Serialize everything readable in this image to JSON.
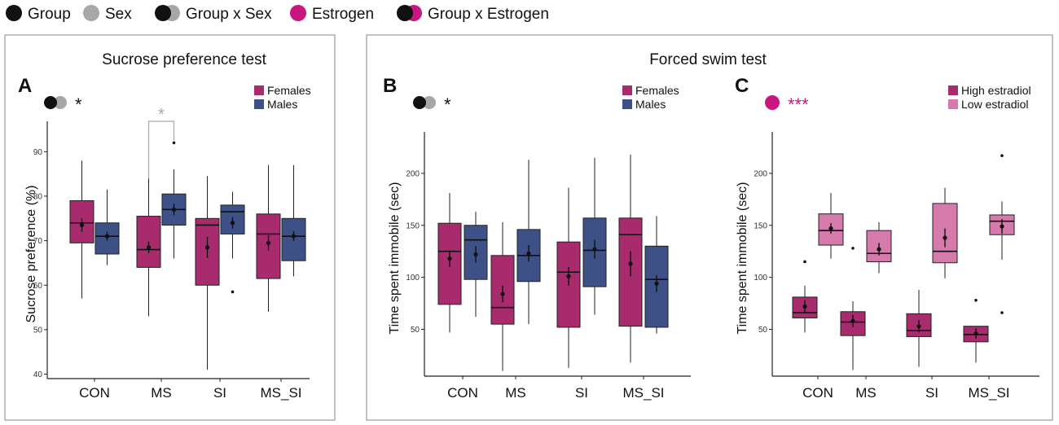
{
  "legend": {
    "items": [
      {
        "label": "Group",
        "icon": "black-dot",
        "colors": [
          "#111111"
        ]
      },
      {
        "label": "Sex",
        "icon": "grey-dot",
        "colors": [
          "#a7a7a7"
        ]
      },
      {
        "label": "Group x Sex",
        "icon": "black-grey-dots",
        "colors": [
          "#111111",
          "#a7a7a7"
        ]
      },
      {
        "label": "Estrogen",
        "icon": "magenta-dot",
        "colors": [
          "#c8177f"
        ]
      },
      {
        "label": "Group x Estrogen",
        "icon": "black-magenta-dots",
        "colors": [
          "#111111",
          "#c8177f"
        ]
      }
    ]
  },
  "colors": {
    "females": "#a72b6d",
    "males": "#3d5186",
    "high_estradiol": "#a72b6d",
    "low_estradiol": "#d57aaa",
    "group_dot": "#111111",
    "sex_dot": "#a7a7a7",
    "estrogen": "#c8177f",
    "panel_border": "#9a9a9a"
  },
  "sections": {
    "sucrose_title": "Sucrose preference test",
    "swim_title": "Forced swim test"
  },
  "chart_data": [
    {
      "type": "boxplot",
      "panel": "A",
      "title": "Sucrose preference test",
      "xlabel": "",
      "ylabel": "Sucrose preference (%)",
      "ylim": [
        39,
        95
      ],
      "yticks": [
        40,
        50,
        60,
        70,
        80,
        90
      ],
      "categories": [
        "CON",
        "MS",
        "SI",
        "MS_SI"
      ],
      "legend": {
        "entries": [
          "Females",
          "Males"
        ],
        "position": "top-right"
      },
      "annotation": {
        "icon": "group-x-sex",
        "label": "*"
      },
      "comparison": {
        "category": "MS",
        "label": "*"
      },
      "series": [
        {
          "name": "Females",
          "color_key": "females",
          "boxes": [
            {
              "min": 57,
              "q1": 69.5,
              "median": 74,
              "q3": 79,
              "max": 88,
              "mean": 73.5,
              "se": 1.5,
              "outliers": []
            },
            {
              "min": 53,
              "q1": 64,
              "median": 68,
              "q3": 75.5,
              "max": 84,
              "mean": 68.5,
              "se": 1.3,
              "outliers": []
            },
            {
              "min": 41,
              "q1": 60,
              "median": 73.5,
              "q3": 75,
              "max": 84.5,
              "mean": 68.5,
              "se": 2.4,
              "outliers": []
            },
            {
              "min": 54,
              "q1": 61.5,
              "median": 71.5,
              "q3": 76,
              "max": 87,
              "mean": 69.5,
              "se": 1.7,
              "outliers": []
            }
          ]
        },
        {
          "name": "Males",
          "color_key": "males",
          "boxes": [
            {
              "min": 64.5,
              "q1": 67,
              "median": 71,
              "q3": 74,
              "max": 81.5,
              "mean": 71,
              "se": 1,
              "outliers": []
            },
            {
              "min": 66,
              "q1": 73.5,
              "median": 77,
              "q3": 80.5,
              "max": 86,
              "mean": 77,
              "se": 1.3,
              "outliers": [
                92
              ]
            },
            {
              "min": 66,
              "q1": 71.5,
              "median": 76.5,
              "q3": 78,
              "max": 81,
              "mean": 74,
              "se": 1.3,
              "outliers": [
                58.5
              ]
            },
            {
              "min": 62,
              "q1": 65.5,
              "median": 71,
              "q3": 75,
              "max": 87,
              "mean": 71,
              "se": 1.1,
              "outliers": []
            }
          ]
        }
      ]
    },
    {
      "type": "boxplot",
      "panel": "B",
      "title": "Forced swim test",
      "xlabel": "",
      "ylabel": "Time spent immobile (sec)",
      "ylim": [
        5,
        232
      ],
      "yticks": [
        50,
        100,
        150,
        200
      ],
      "categories": [
        "CON",
        "MS",
        "SI",
        "MS_SI"
      ],
      "legend": {
        "entries": [
          "Females",
          "Males"
        ],
        "position": "top-right"
      },
      "annotation": {
        "icon": "group-x-sex",
        "label": "*"
      },
      "series": [
        {
          "name": "Females",
          "color_key": "females",
          "boxes": [
            {
              "min": 47,
              "q1": 74,
              "median": 125,
              "q3": 152,
              "max": 181,
              "mean": 118,
              "se": 8,
              "outliers": []
            },
            {
              "min": 10,
              "q1": 55,
              "median": 71,
              "q3": 121,
              "max": 153,
              "mean": 84,
              "se": 8,
              "outliers": []
            },
            {
              "min": 13,
              "q1": 52,
              "median": 105,
              "q3": 134,
              "max": 186,
              "mean": 101,
              "se": 9,
              "outliers": []
            },
            {
              "min": 18,
              "q1": 53,
              "median": 141,
              "q3": 157,
              "max": 218,
              "mean": 113,
              "se": 12,
              "outliers": []
            }
          ]
        },
        {
          "name": "Males",
          "color_key": "males",
          "boxes": [
            {
              "min": 62,
              "q1": 98,
              "median": 136,
              "q3": 150,
              "max": 163,
              "mean": 122,
              "se": 8,
              "outliers": []
            },
            {
              "min": 55,
              "q1": 96,
              "median": 121,
              "q3": 146,
              "max": 213,
              "mean": 123,
              "se": 8,
              "outliers": []
            },
            {
              "min": 64,
              "q1": 91,
              "median": 126,
              "q3": 157,
              "max": 215,
              "mean": 127,
              "se": 9,
              "outliers": []
            },
            {
              "min": 46,
              "q1": 52,
              "median": 98,
              "q3": 130,
              "max": 159,
              "mean": 94,
              "se": 8,
              "outliers": []
            }
          ]
        }
      ]
    },
    {
      "type": "boxplot",
      "panel": "C",
      "title": "Forced swim test",
      "xlabel": "",
      "ylabel": "Time spent immobile (sec)",
      "ylim": [
        5,
        232
      ],
      "yticks": [
        50,
        100,
        150,
        200
      ],
      "categories": [
        "CON",
        "MS",
        "SI",
        "MS_SI"
      ],
      "legend": {
        "entries": [
          "High estradiol",
          "Low estradiol"
        ],
        "position": "top-right"
      },
      "annotation": {
        "icon": "estrogen",
        "label": "***"
      },
      "series": [
        {
          "name": "High estradiol",
          "color_key": "high_estradiol",
          "boxes": [
            {
              "min": 47,
              "q1": 61,
              "median": 66,
              "q3": 81,
              "max": 92,
              "mean": 72,
              "se": 6,
              "outliers": [
                115
              ]
            },
            {
              "min": 11,
              "q1": 44,
              "median": 57,
              "q3": 67,
              "max": 77,
              "mean": 58,
              "se": 6,
              "outliers": [
                128
              ]
            },
            {
              "min": 14,
              "q1": 43,
              "median": 49,
              "q3": 65,
              "max": 88,
              "mean": 53,
              "se": 6,
              "outliers": []
            },
            {
              "min": 18,
              "q1": 38,
              "median": 45,
              "q3": 53,
              "max": 53,
              "mean": 46,
              "se": 5,
              "outliers": [
                78
              ]
            }
          ]
        },
        {
          "name": "Low estradiol",
          "color_key": "low_estradiol",
          "boxes": [
            {
              "min": 118,
              "q1": 131,
              "median": 145,
              "q3": 161,
              "max": 181,
              "mean": 147,
              "se": 5,
              "outliers": []
            },
            {
              "min": 104,
              "q1": 115,
              "median": 123,
              "q3": 145,
              "max": 153,
              "mean": 127,
              "se": 6,
              "outliers": []
            },
            {
              "min": 99,
              "q1": 114,
              "median": 125,
              "q3": 171,
              "max": 186,
              "mean": 138,
              "se": 9,
              "outliers": []
            },
            {
              "min": 117,
              "q1": 141,
              "median": 154,
              "q3": 160,
              "max": 173,
              "mean": 149,
              "se": 7,
              "outliers": [
                217,
                66
              ]
            }
          ]
        }
      ]
    }
  ]
}
